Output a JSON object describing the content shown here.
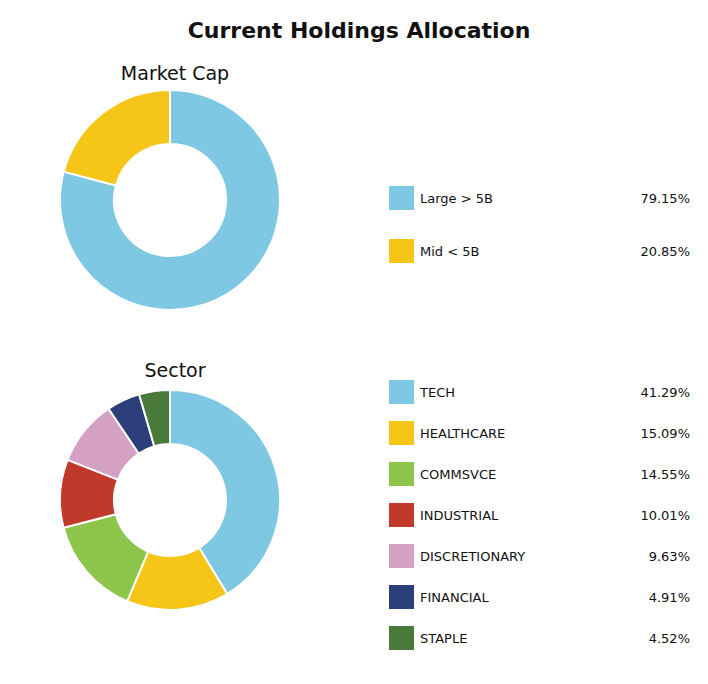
{
  "chart_data": [
    {
      "type": "pie",
      "title": "Current Holdings Allocation",
      "subtitle": "Market Cap",
      "categories": [
        "Large > 5B",
        "Mid < 5B"
      ],
      "values": [
        79.15,
        20.85
      ],
      "value_labels": [
        "79.15%",
        "20.85%"
      ],
      "colors": [
        "#7EC8E3",
        "#F5C518"
      ],
      "legend": "right"
    },
    {
      "type": "pie",
      "subtitle": "Sector",
      "categories": [
        "TECH",
        "HEALTHCARE",
        "COMMSVCE",
        "INDUSTRIAL",
        "DISCRETIONARY",
        "FINANCIAL",
        "STAPLE"
      ],
      "values": [
        41.29,
        15.09,
        14.55,
        10.01,
        9.63,
        4.91,
        4.52
      ],
      "value_labels": [
        "41.29%",
        "15.09%",
        "14.55%",
        "10.01%",
        "9.63%",
        "4.91%",
        "4.52%"
      ],
      "colors": [
        "#7EC8E3",
        "#F5C518",
        "#8DC44A",
        "#C0392B",
        "#D4A0C4",
        "#2C3E7A",
        "#4A7A3A"
      ],
      "legend": "right"
    }
  ]
}
